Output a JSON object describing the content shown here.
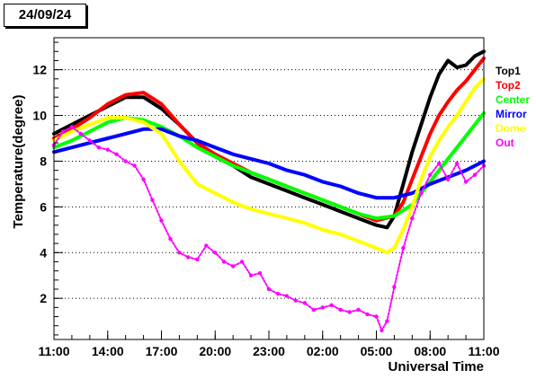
{
  "date_label": "24/09/24",
  "chart_data": {
    "type": "scatter",
    "title": "24/09/24",
    "xlabel": "Universal Time",
    "ylabel": "Temperature(degree)",
    "x_unit": "hours since 11:00",
    "xlim": [
      0,
      24
    ],
    "ylim": [
      0.2,
      13.4
    ],
    "x_ticks": [
      0,
      3,
      6,
      9,
      12,
      15,
      18,
      21,
      24
    ],
    "x_tick_labels": [
      "11:00",
      "14:00",
      "17:00",
      "20:00",
      "23:00",
      "02:00",
      "05:00",
      "08:00",
      "11:00"
    ],
    "y_ticks": [
      2,
      4,
      6,
      8,
      10,
      12
    ],
    "y_tick_labels": [
      "2",
      "4",
      "6",
      "8",
      "10",
      "12"
    ],
    "grid": "horizontal-dotted",
    "legend_position": "right",
    "series": [
      {
        "name": "Top1",
        "color": "#000000",
        "x": [
          0,
          1,
          2,
          3,
          4,
          5,
          6,
          7,
          8,
          9,
          10,
          11,
          12,
          13,
          14,
          15,
          16,
          17,
          18,
          18.6,
          19,
          19.5,
          20,
          20.5,
          21,
          21.5,
          22,
          22.5,
          23,
          23.5,
          24
        ],
        "y": [
          9.2,
          9.6,
          10.0,
          10.4,
          10.8,
          10.8,
          10.3,
          9.6,
          8.8,
          8.2,
          7.8,
          7.3,
          7.0,
          6.7,
          6.4,
          6.1,
          5.8,
          5.5,
          5.2,
          5.1,
          5.6,
          7.0,
          8.4,
          9.6,
          10.8,
          11.8,
          12.4,
          12.1,
          12.2,
          12.6,
          12.8
        ]
      },
      {
        "name": "Top2",
        "color": "#ff0000",
        "x": [
          0,
          1,
          2,
          3,
          4,
          5,
          6,
          7,
          8,
          9,
          10,
          11,
          12,
          13,
          14,
          15,
          16,
          17,
          18,
          19,
          19.5,
          20,
          20.5,
          21,
          21.5,
          22,
          22.5,
          23,
          23.5,
          24
        ],
        "y": [
          9.0,
          9.4,
          9.9,
          10.5,
          10.9,
          11.0,
          10.5,
          9.6,
          8.8,
          8.3,
          7.9,
          7.5,
          7.2,
          6.9,
          6.6,
          6.3,
          6.0,
          5.7,
          5.4,
          5.6,
          6.2,
          7.2,
          8.2,
          9.2,
          10.0,
          10.6,
          11.1,
          11.5,
          12.0,
          12.5
        ]
      },
      {
        "name": "Center",
        "color": "#00ff00",
        "x": [
          0,
          1,
          2,
          3,
          4,
          5,
          6,
          7,
          8,
          9,
          10,
          11,
          12,
          13,
          14,
          15,
          16,
          17,
          18,
          19,
          20,
          21,
          22,
          23,
          24
        ],
        "y": [
          8.6,
          8.9,
          9.3,
          9.7,
          9.9,
          9.8,
          9.5,
          9.1,
          8.6,
          8.2,
          7.8,
          7.5,
          7.2,
          6.9,
          6.6,
          6.3,
          6.0,
          5.7,
          5.5,
          5.6,
          6.1,
          7.1,
          8.1,
          9.1,
          10.1
        ]
      },
      {
        "name": "Mirror",
        "color": "#0000ff",
        "x": [
          0,
          1,
          2,
          3,
          4,
          5,
          6,
          7,
          8,
          9,
          10,
          11,
          12,
          13,
          14,
          15,
          16,
          17,
          18,
          19,
          20,
          21,
          22,
          23,
          24
        ],
        "y": [
          8.4,
          8.6,
          8.8,
          9.0,
          9.2,
          9.4,
          9.4,
          9.1,
          8.9,
          8.6,
          8.3,
          8.1,
          7.9,
          7.6,
          7.4,
          7.1,
          6.9,
          6.6,
          6.4,
          6.4,
          6.6,
          7.0,
          7.3,
          7.6,
          8.0
        ]
      },
      {
        "name": "Dome",
        "color": "#ffff00",
        "x": [
          0,
          1,
          2,
          3,
          4,
          5,
          6,
          7,
          8,
          9,
          10,
          11,
          12,
          13,
          14,
          15,
          16,
          17,
          18,
          18.6,
          19,
          19.5,
          20,
          20.5,
          21,
          21.5,
          22,
          22.5,
          23,
          23.5,
          24
        ],
        "y": [
          8.9,
          9.3,
          9.6,
          9.9,
          9.9,
          9.7,
          9.2,
          8.0,
          7.0,
          6.6,
          6.2,
          5.9,
          5.7,
          5.5,
          5.3,
          5.0,
          4.8,
          4.5,
          4.2,
          4.0,
          4.2,
          5.0,
          6.0,
          7.2,
          8.2,
          8.9,
          9.5,
          10.0,
          10.6,
          11.2,
          11.6
        ]
      },
      {
        "name": "Out",
        "color": "#ff00ff",
        "x": [
          0,
          0.5,
          1,
          1.5,
          2,
          2.5,
          3,
          3.5,
          4,
          4.5,
          5,
          5.5,
          6,
          6.5,
          7,
          7.5,
          8,
          8.5,
          9,
          9.5,
          10,
          10.5,
          11,
          11.5,
          12,
          12.5,
          13,
          13.5,
          14,
          14.5,
          15,
          15.5,
          16,
          16.5,
          17,
          17.5,
          18,
          18.3,
          18.6,
          19,
          19.5,
          20,
          20.5,
          21,
          21.5,
          22,
          22.5,
          23,
          23.5,
          24
        ],
        "y": [
          8.7,
          9.3,
          9.5,
          9.2,
          8.9,
          8.6,
          8.5,
          8.3,
          8.0,
          7.8,
          7.2,
          6.3,
          5.4,
          4.6,
          4.0,
          3.8,
          3.7,
          4.3,
          4.0,
          3.6,
          3.4,
          3.6,
          3.0,
          3.1,
          2.4,
          2.2,
          2.1,
          1.9,
          1.8,
          1.5,
          1.6,
          1.7,
          1.5,
          1.4,
          1.5,
          1.3,
          1.2,
          0.6,
          1.0,
          2.5,
          4.2,
          5.5,
          6.6,
          7.4,
          7.9,
          7.2,
          7.9,
          7.1,
          7.4,
          7.8
        ]
      }
    ]
  }
}
